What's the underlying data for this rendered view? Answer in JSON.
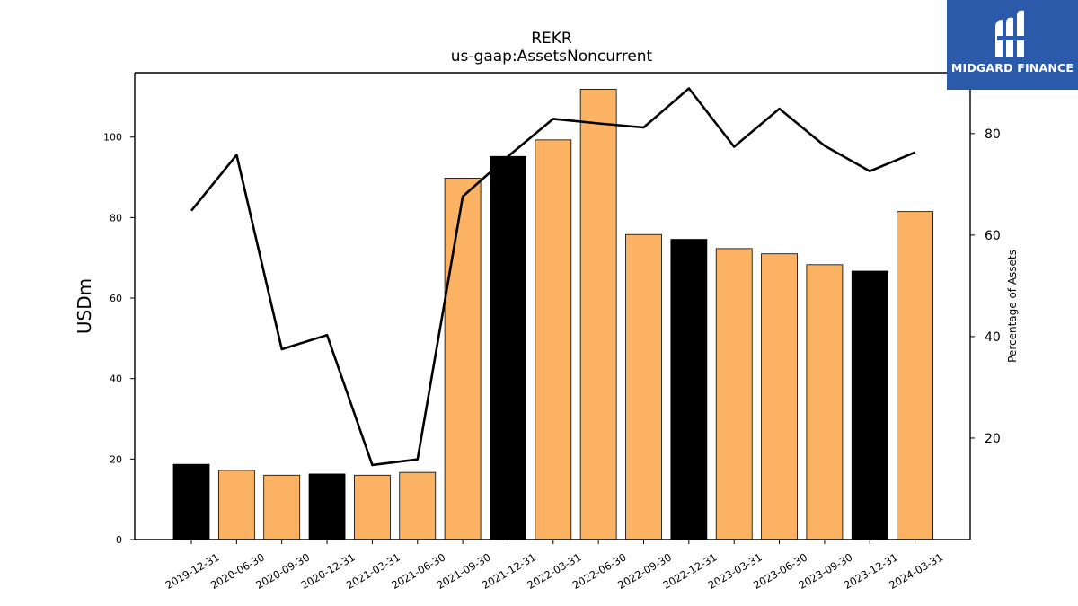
{
  "chart_data": {
    "type": "bar+line",
    "title": "REKR",
    "subtitle": "us-gaap:AssetsNoncurrent",
    "ylabel": "USDm",
    "y2label": "Percentage of Assets",
    "ylim": [
      0,
      116
    ],
    "y2lim": [
      0,
      92
    ],
    "yticks": [
      0,
      20,
      40,
      60,
      80,
      100
    ],
    "y2ticks": [
      20,
      40,
      60,
      80
    ],
    "categories": [
      "2019-12-31",
      "2020-06-30",
      "2020-09-30",
      "2020-12-31",
      "2021-03-31",
      "2021-06-30",
      "2021-09-30",
      "2021-12-31",
      "2022-03-31",
      "2022-06-30",
      "2022-09-30",
      "2022-12-31",
      "2023-03-31",
      "2023-06-30",
      "2023-09-30",
      "2023-12-31",
      "2024-03-31"
    ],
    "series": [
      {
        "type": "bar",
        "values": [
          18.7,
          17.2,
          16.0,
          16.3,
          16.0,
          16.7,
          89.8,
          95.2,
          99.3,
          111.9,
          75.8,
          74.6,
          72.3,
          71.0,
          68.3,
          66.7,
          81.5
        ],
        "colors": [
          "#000000",
          "#fbb363",
          "#fbb363",
          "#000000",
          "#fbb363",
          "#fbb363",
          "#fbb363",
          "#000000",
          "#fbb363",
          "#fbb363",
          "#fbb363",
          "#000000",
          "#fbb363",
          "#fbb363",
          "#fbb363",
          "#000000",
          "#fbb363"
        ]
      },
      {
        "type": "line",
        "axis": "right",
        "color": "#000000",
        "values": [
          64.8,
          75.8,
          37.5,
          40.3,
          14.7,
          15.8,
          67.6,
          75.5,
          82.9,
          82.0,
          81.2,
          88.9,
          77.4,
          84.9,
          77.6,
          72.6,
          76.3
        ]
      }
    ]
  },
  "logo": {
    "text": "MIDGARD FINANCE"
  }
}
